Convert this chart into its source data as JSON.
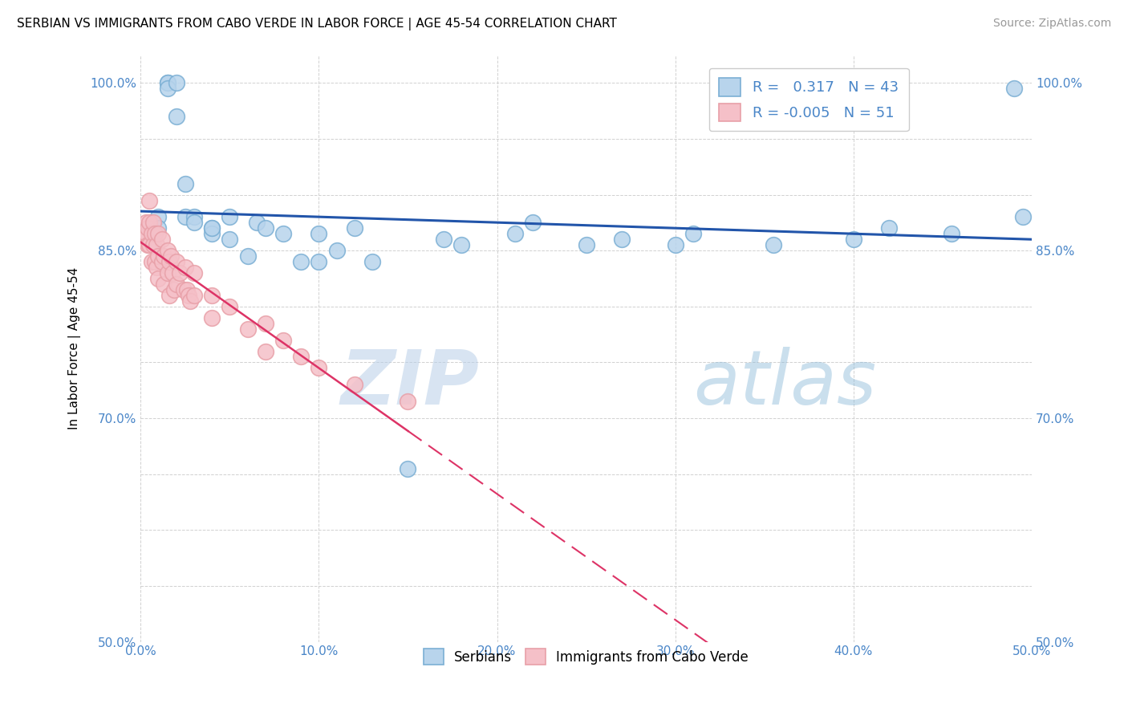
{
  "title": "SERBIAN VS IMMIGRANTS FROM CABO VERDE IN LABOR FORCE | AGE 45-54 CORRELATION CHART",
  "source": "Source: ZipAtlas.com",
  "ylabel": "In Labor Force | Age 45-54",
  "xlim": [
    0.0,
    0.5
  ],
  "ylim": [
    0.5,
    1.025
  ],
  "xticks": [
    0.0,
    0.1,
    0.2,
    0.3,
    0.4,
    0.5
  ],
  "xticklabels": [
    "0.0%",
    "10.0%",
    "20.0%",
    "30.0%",
    "40.0%",
    "50.0%"
  ],
  "yticks": [
    0.5,
    0.55,
    0.6,
    0.65,
    0.7,
    0.75,
    0.8,
    0.85,
    0.9,
    0.95,
    1.0
  ],
  "yticklabels": [
    "50.0%",
    "",
    "",
    "",
    "70.0%",
    "",
    "",
    "85.0%",
    "",
    "",
    "100.0%"
  ],
  "blue_color": "#7bafd4",
  "pink_color": "#e8a0a8",
  "blue_fill": "#b8d4ec",
  "pink_fill": "#f5c0c8",
  "blue_line_color": "#2255aa",
  "pink_line_color": "#dd3366",
  "r_blue": 0.317,
  "n_blue": 43,
  "r_pink": -0.005,
  "n_pink": 51,
  "legend_label_blue": "Serbians",
  "legend_label_pink": "Immigrants from Cabo Verde",
  "watermark_zip": "ZIP",
  "watermark_atlas": "atlas",
  "blue_x": [
    0.005,
    0.007,
    0.01,
    0.01,
    0.015,
    0.015,
    0.015,
    0.02,
    0.02,
    0.025,
    0.025,
    0.03,
    0.03,
    0.04,
    0.04,
    0.04,
    0.05,
    0.05,
    0.06,
    0.065,
    0.07,
    0.08,
    0.09,
    0.1,
    0.1,
    0.11,
    0.12,
    0.13,
    0.15,
    0.17,
    0.18,
    0.21,
    0.22,
    0.25,
    0.27,
    0.3,
    0.31,
    0.355,
    0.4,
    0.42,
    0.455,
    0.49,
    0.495
  ],
  "blue_y": [
    0.87,
    0.855,
    0.88,
    0.87,
    1.0,
    1.0,
    0.995,
    1.0,
    0.97,
    0.91,
    0.88,
    0.88,
    0.875,
    0.87,
    0.865,
    0.87,
    0.86,
    0.88,
    0.845,
    0.875,
    0.87,
    0.865,
    0.84,
    0.865,
    0.84,
    0.85,
    0.87,
    0.84,
    0.655,
    0.86,
    0.855,
    0.865,
    0.875,
    0.855,
    0.86,
    0.855,
    0.865,
    0.855,
    0.86,
    0.87,
    0.865,
    0.995,
    0.88
  ],
  "pink_x": [
    0.002,
    0.003,
    0.003,
    0.004,
    0.004,
    0.005,
    0.005,
    0.005,
    0.006,
    0.006,
    0.007,
    0.007,
    0.008,
    0.008,
    0.009,
    0.009,
    0.01,
    0.01,
    0.01,
    0.012,
    0.012,
    0.013,
    0.013,
    0.015,
    0.015,
    0.016,
    0.016,
    0.017,
    0.018,
    0.019,
    0.02,
    0.02,
    0.022,
    0.024,
    0.025,
    0.026,
    0.027,
    0.028,
    0.03,
    0.03,
    0.04,
    0.04,
    0.05,
    0.06,
    0.07,
    0.07,
    0.08,
    0.09,
    0.1,
    0.12,
    0.15
  ],
  "pink_y": [
    0.86,
    0.865,
    0.875,
    0.87,
    0.855,
    0.895,
    0.875,
    0.855,
    0.865,
    0.84,
    0.875,
    0.855,
    0.865,
    0.84,
    0.855,
    0.835,
    0.865,
    0.845,
    0.825,
    0.86,
    0.84,
    0.845,
    0.82,
    0.85,
    0.83,
    0.84,
    0.81,
    0.845,
    0.83,
    0.815,
    0.84,
    0.82,
    0.83,
    0.815,
    0.835,
    0.815,
    0.81,
    0.805,
    0.83,
    0.81,
    0.81,
    0.79,
    0.8,
    0.78,
    0.785,
    0.76,
    0.77,
    0.755,
    0.745,
    0.73,
    0.715
  ],
  "tick_color": "#4a86c8",
  "grid_color": "#cccccc",
  "title_fontsize": 11,
  "source_fontsize": 10,
  "ylabel_fontsize": 11,
  "tick_fontsize": 11,
  "legend_fontsize": 13
}
